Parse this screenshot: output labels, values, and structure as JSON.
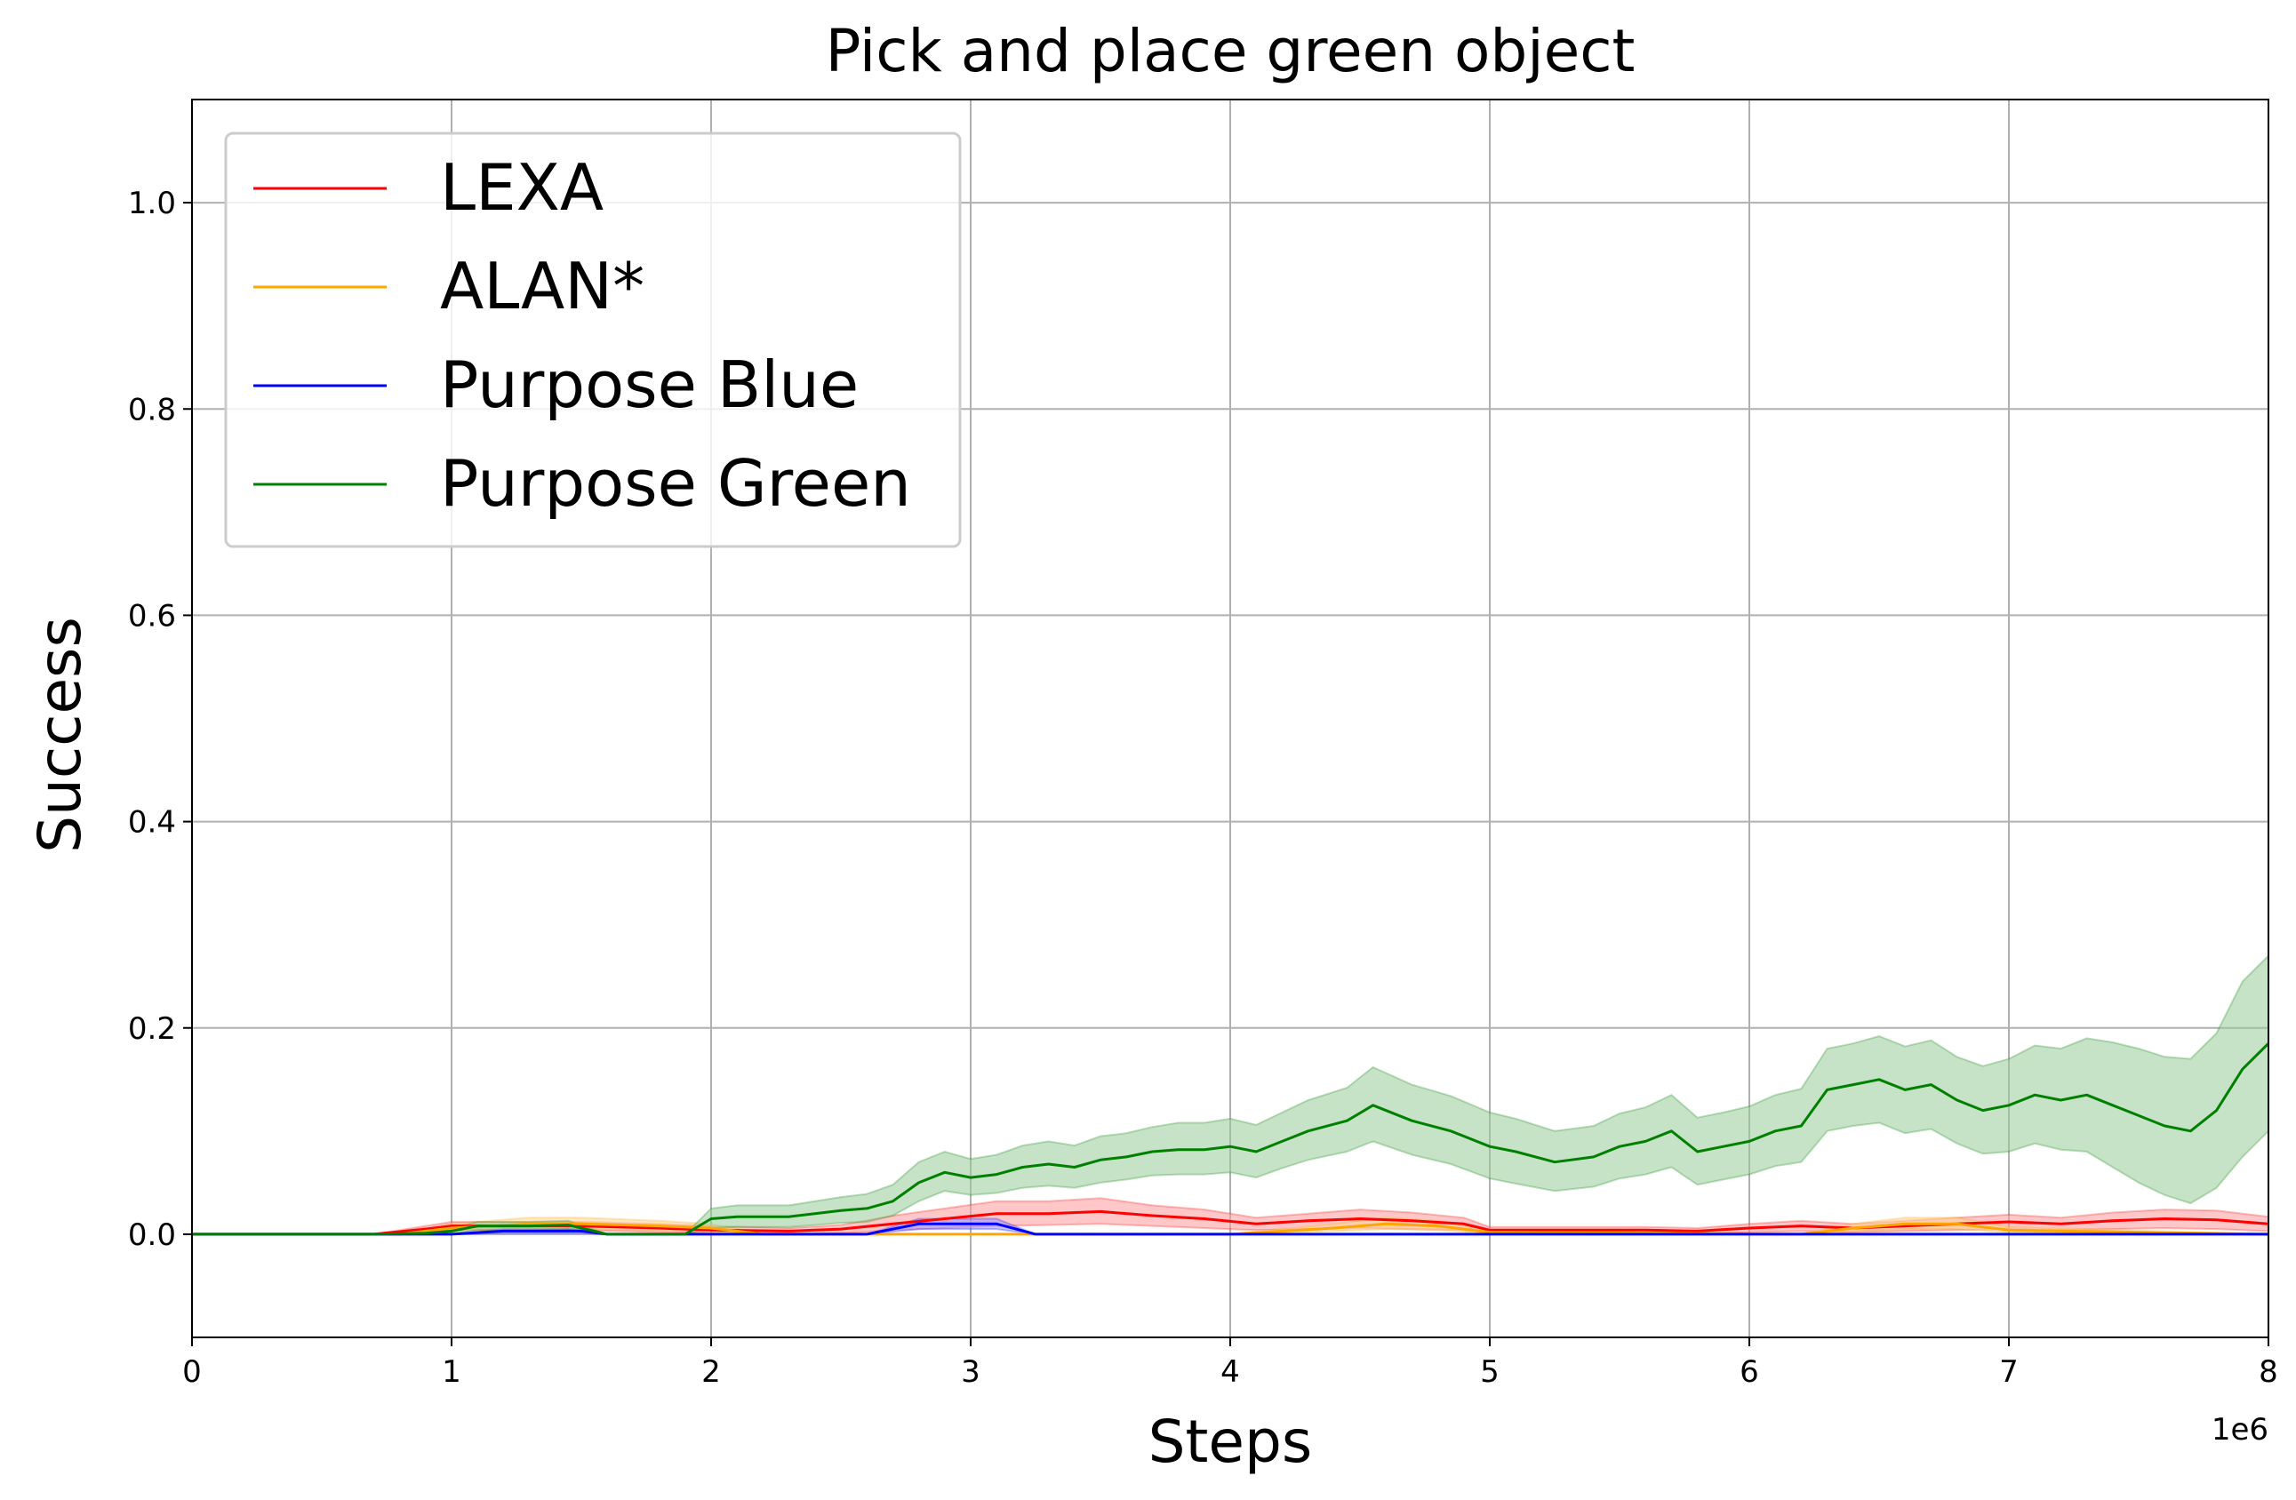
{
  "chart_data": {
    "type": "line",
    "title": "Pick and place green object",
    "xlabel": "Steps",
    "ylabel": "Success",
    "x_multiplier": "1e6",
    "xlim": [
      0,
      8
    ],
    "ylim": [
      -0.1,
      1.1
    ],
    "xticks": [
      0,
      1,
      2,
      3,
      4,
      5,
      6,
      7,
      8
    ],
    "xtick_labels": [
      "0",
      "1",
      "2",
      "3",
      "4",
      "5",
      "6",
      "7",
      "8"
    ],
    "yticks": [
      0.0,
      0.2,
      0.4,
      0.6,
      0.8,
      1.0
    ],
    "ytick_labels": [
      "0.0",
      "0.2",
      "0.4",
      "0.6",
      "0.8",
      "1.0"
    ],
    "grid": true,
    "legend_position": "top-left",
    "series": [
      {
        "name": "LEXA",
        "color": "#ff0000",
        "band_color": "#ff9999",
        "x": [
          0,
          0.5,
          0.7,
          0.9,
          1.0,
          1.2,
          1.5,
          1.8,
          2.0,
          2.3,
          2.5,
          2.7,
          2.9,
          3.1,
          3.3,
          3.5,
          3.7,
          3.9,
          4.1,
          4.3,
          4.5,
          4.7,
          4.9,
          5.0,
          5.3,
          5.6,
          5.8,
          6.0,
          6.2,
          6.4,
          6.6,
          6.8,
          7.0,
          7.2,
          7.4,
          7.6,
          7.8,
          8.0
        ],
        "y": [
          0.0,
          0.0,
          0.0,
          0.005,
          0.008,
          0.008,
          0.008,
          0.006,
          0.004,
          0.003,
          0.005,
          0.01,
          0.015,
          0.02,
          0.02,
          0.022,
          0.018,
          0.015,
          0.01,
          0.013,
          0.015,
          0.013,
          0.01,
          0.004,
          0.004,
          0.004,
          0.003,
          0.006,
          0.008,
          0.006,
          0.008,
          0.01,
          0.012,
          0.01,
          0.013,
          0.015,
          0.014,
          0.01
        ],
        "lower": [
          0.0,
          0.0,
          0.0,
          0.002,
          0.004,
          0.004,
          0.004,
          0.002,
          0.001,
          0.0,
          0.001,
          0.004,
          0.006,
          0.008,
          0.009,
          0.01,
          0.008,
          0.006,
          0.004,
          0.005,
          0.006,
          0.005,
          0.004,
          0.001,
          0.001,
          0.001,
          0.0,
          0.002,
          0.003,
          0.002,
          0.003,
          0.004,
          0.005,
          0.004,
          0.005,
          0.006,
          0.005,
          0.003
        ],
        "upper": [
          0.0,
          0.0,
          0.0,
          0.008,
          0.012,
          0.012,
          0.012,
          0.01,
          0.008,
          0.006,
          0.009,
          0.018,
          0.025,
          0.032,
          0.032,
          0.035,
          0.028,
          0.024,
          0.016,
          0.02,
          0.024,
          0.021,
          0.016,
          0.007,
          0.007,
          0.007,
          0.006,
          0.01,
          0.013,
          0.01,
          0.013,
          0.016,
          0.019,
          0.016,
          0.021,
          0.024,
          0.023,
          0.017
        ]
      },
      {
        "name": "ALAN*",
        "color": "#ffa500",
        "band_color": "#ffd699",
        "x": [
          0,
          0.8,
          1.0,
          1.3,
          1.5,
          1.8,
          2.0,
          2.2,
          2.6,
          2.9,
          3.2,
          4.0,
          4.4,
          4.6,
          4.8,
          5.0,
          6.2,
          6.4,
          6.6,
          6.8,
          7.0,
          8.0
        ],
        "y": [
          0.0,
          0.0,
          0.006,
          0.01,
          0.01,
          0.008,
          0.006,
          0.0,
          0.0,
          0.0,
          0.0,
          0.0,
          0.006,
          0.01,
          0.008,
          0.002,
          0.0,
          0.006,
          0.01,
          0.01,
          0.004,
          0.0
        ],
        "lower": [
          0.0,
          0.0,
          0.003,
          0.005,
          0.005,
          0.004,
          0.003,
          0.0,
          0.0,
          0.0,
          0.0,
          0.0,
          0.003,
          0.005,
          0.004,
          0.001,
          0.0,
          0.003,
          0.005,
          0.005,
          0.002,
          0.0
        ],
        "upper": [
          0.0,
          0.0,
          0.01,
          0.016,
          0.016,
          0.013,
          0.01,
          0.0,
          0.0,
          0.0,
          0.0,
          0.0,
          0.01,
          0.016,
          0.013,
          0.004,
          0.0,
          0.01,
          0.016,
          0.016,
          0.007,
          0.0
        ]
      },
      {
        "name": "Purpose Blue",
        "color": "#0000ff",
        "band_color": "#9999ff",
        "x": [
          0,
          1.0,
          1.2,
          1.5,
          1.6,
          2.6,
          2.8,
          3.1,
          3.25,
          8.0
        ],
        "y": [
          0.0,
          0.0,
          0.003,
          0.003,
          0.0,
          0.0,
          0.01,
          0.01,
          0.0,
          0.0
        ],
        "lower": [
          0.0,
          0.0,
          0.001,
          0.001,
          0.0,
          0.0,
          0.005,
          0.005,
          0.0,
          0.0
        ],
        "upper": [
          0.0,
          0.0,
          0.005,
          0.005,
          0.0,
          0.0,
          0.015,
          0.015,
          0.0,
          0.0
        ]
      },
      {
        "name": "Purpose Green",
        "color": "#008000",
        "band_color": "#99cc99",
        "x": [
          0,
          0.7,
          0.9,
          1.0,
          1.1,
          1.3,
          1.45,
          1.6,
          1.8,
          1.9,
          2.0,
          2.1,
          2.3,
          2.4,
          2.5,
          2.6,
          2.7,
          2.8,
          2.9,
          3.0,
          3.1,
          3.2,
          3.3,
          3.4,
          3.5,
          3.6,
          3.7,
          3.8,
          3.9,
          4.0,
          4.1,
          4.2,
          4.3,
          4.45,
          4.55,
          4.7,
          4.85,
          5.0,
          5.1,
          5.25,
          5.4,
          5.5,
          5.6,
          5.7,
          5.8,
          5.9,
          6.0,
          6.1,
          6.2,
          6.3,
          6.4,
          6.5,
          6.6,
          6.7,
          6.8,
          6.9,
          7.0,
          7.1,
          7.2,
          7.3,
          7.4,
          7.5,
          7.6,
          7.7,
          7.8,
          7.9,
          8.0
        ],
        "y": [
          0.0,
          0.0,
          0.001,
          0.003,
          0.008,
          0.008,
          0.009,
          0.0,
          0.0,
          0.0,
          0.015,
          0.017,
          0.017,
          0.02,
          0.023,
          0.025,
          0.032,
          0.05,
          0.06,
          0.055,
          0.058,
          0.065,
          0.068,
          0.065,
          0.072,
          0.075,
          0.08,
          0.082,
          0.082,
          0.085,
          0.08,
          0.09,
          0.1,
          0.11,
          0.125,
          0.11,
          0.1,
          0.085,
          0.08,
          0.07,
          0.075,
          0.085,
          0.09,
          0.1,
          0.08,
          0.085,
          0.09,
          0.1,
          0.105,
          0.14,
          0.145,
          0.15,
          0.14,
          0.145,
          0.13,
          0.12,
          0.125,
          0.135,
          0.13,
          0.135,
          0.125,
          0.115,
          0.105,
          0.1,
          0.12,
          0.16,
          0.185
        ],
        "lower": [
          0.0,
          0.0,
          0.0,
          0.0,
          0.004,
          0.004,
          0.005,
          0.0,
          0.0,
          0.0,
          0.006,
          0.007,
          0.007,
          0.009,
          0.011,
          0.012,
          0.018,
          0.032,
          0.042,
          0.038,
          0.04,
          0.045,
          0.047,
          0.045,
          0.05,
          0.053,
          0.057,
          0.058,
          0.058,
          0.06,
          0.055,
          0.064,
          0.072,
          0.08,
          0.09,
          0.077,
          0.068,
          0.054,
          0.049,
          0.042,
          0.046,
          0.054,
          0.058,
          0.065,
          0.048,
          0.053,
          0.058,
          0.066,
          0.07,
          0.1,
          0.105,
          0.108,
          0.098,
          0.102,
          0.088,
          0.078,
          0.08,
          0.088,
          0.082,
          0.08,
          0.065,
          0.05,
          0.038,
          0.03,
          0.045,
          0.075,
          0.1
        ],
        "upper": [
          0.0,
          0.0,
          0.002,
          0.006,
          0.012,
          0.012,
          0.013,
          0.0,
          0.0,
          0.0,
          0.025,
          0.028,
          0.028,
          0.032,
          0.036,
          0.039,
          0.048,
          0.07,
          0.08,
          0.073,
          0.077,
          0.086,
          0.09,
          0.086,
          0.095,
          0.098,
          0.104,
          0.108,
          0.108,
          0.112,
          0.106,
          0.118,
          0.13,
          0.142,
          0.162,
          0.145,
          0.134,
          0.118,
          0.112,
          0.1,
          0.105,
          0.117,
          0.123,
          0.135,
          0.113,
          0.118,
          0.124,
          0.135,
          0.141,
          0.18,
          0.185,
          0.192,
          0.182,
          0.188,
          0.172,
          0.163,
          0.17,
          0.183,
          0.18,
          0.19,
          0.186,
          0.18,
          0.172,
          0.17,
          0.195,
          0.245,
          0.27
        ]
      }
    ]
  }
}
